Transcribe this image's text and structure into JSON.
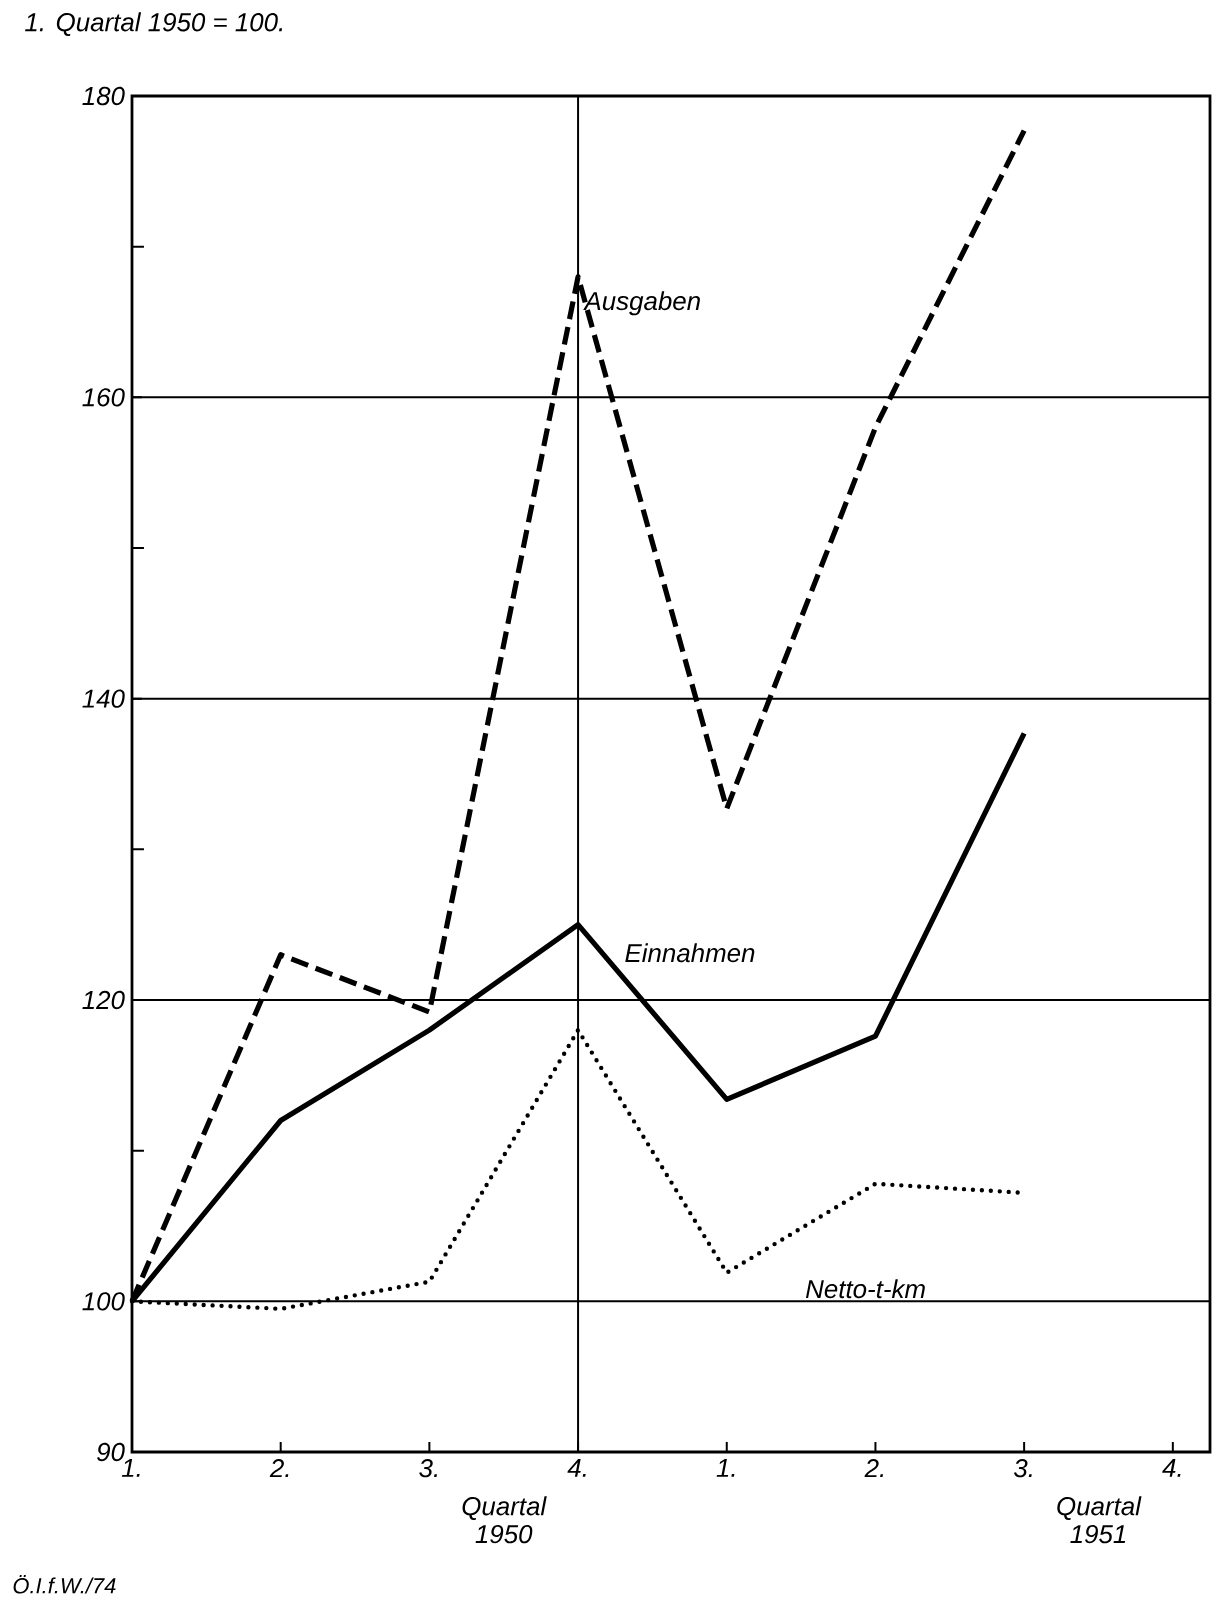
{
  "chart_data": {
    "type": "line",
    "title": "1. Quartal 1950 = 100.",
    "categories": [
      "1.",
      "2.",
      "3.",
      "4.",
      "1.",
      "2.",
      "3.",
      "4."
    ],
    "ylim": [
      90,
      180
    ],
    "yticks": [
      90,
      100,
      {
        "value": 110,
        "label": null
      },
      120,
      {
        "value": 130,
        "label": null
      },
      140,
      {
        "value": 150,
        "label": null
      },
      160,
      {
        "value": 170,
        "label": null
      },
      180
    ],
    "grid": "y",
    "series": [
      {
        "name": "Ausgaben",
        "color": "#000000",
        "line_style": "dashed",
        "values": [
          100,
          123,
          119.2,
          168,
          132.7,
          158,
          177.7,
          null
        ]
      },
      {
        "name": "Einnahmen",
        "color": "#000000",
        "line_style": "solid",
        "values": [
          100,
          112,
          118,
          125,
          113.4,
          117.6,
          137.7,
          null
        ]
      },
      {
        "name": "Netto-t-km",
        "color": "#000000",
        "line_style": "dotted",
        "values": [
          100,
          99.5,
          101.3,
          118,
          101.9,
          107.8,
          107.2,
          null
        ]
      }
    ],
    "ref_lines": [
      {
        "axis": "x",
        "value": "4."
      }
    ],
    "annotations": [
      "Quartal 1950",
      "Quartal 1951",
      "Ö.I.f.W./74"
    ]
  }
}
